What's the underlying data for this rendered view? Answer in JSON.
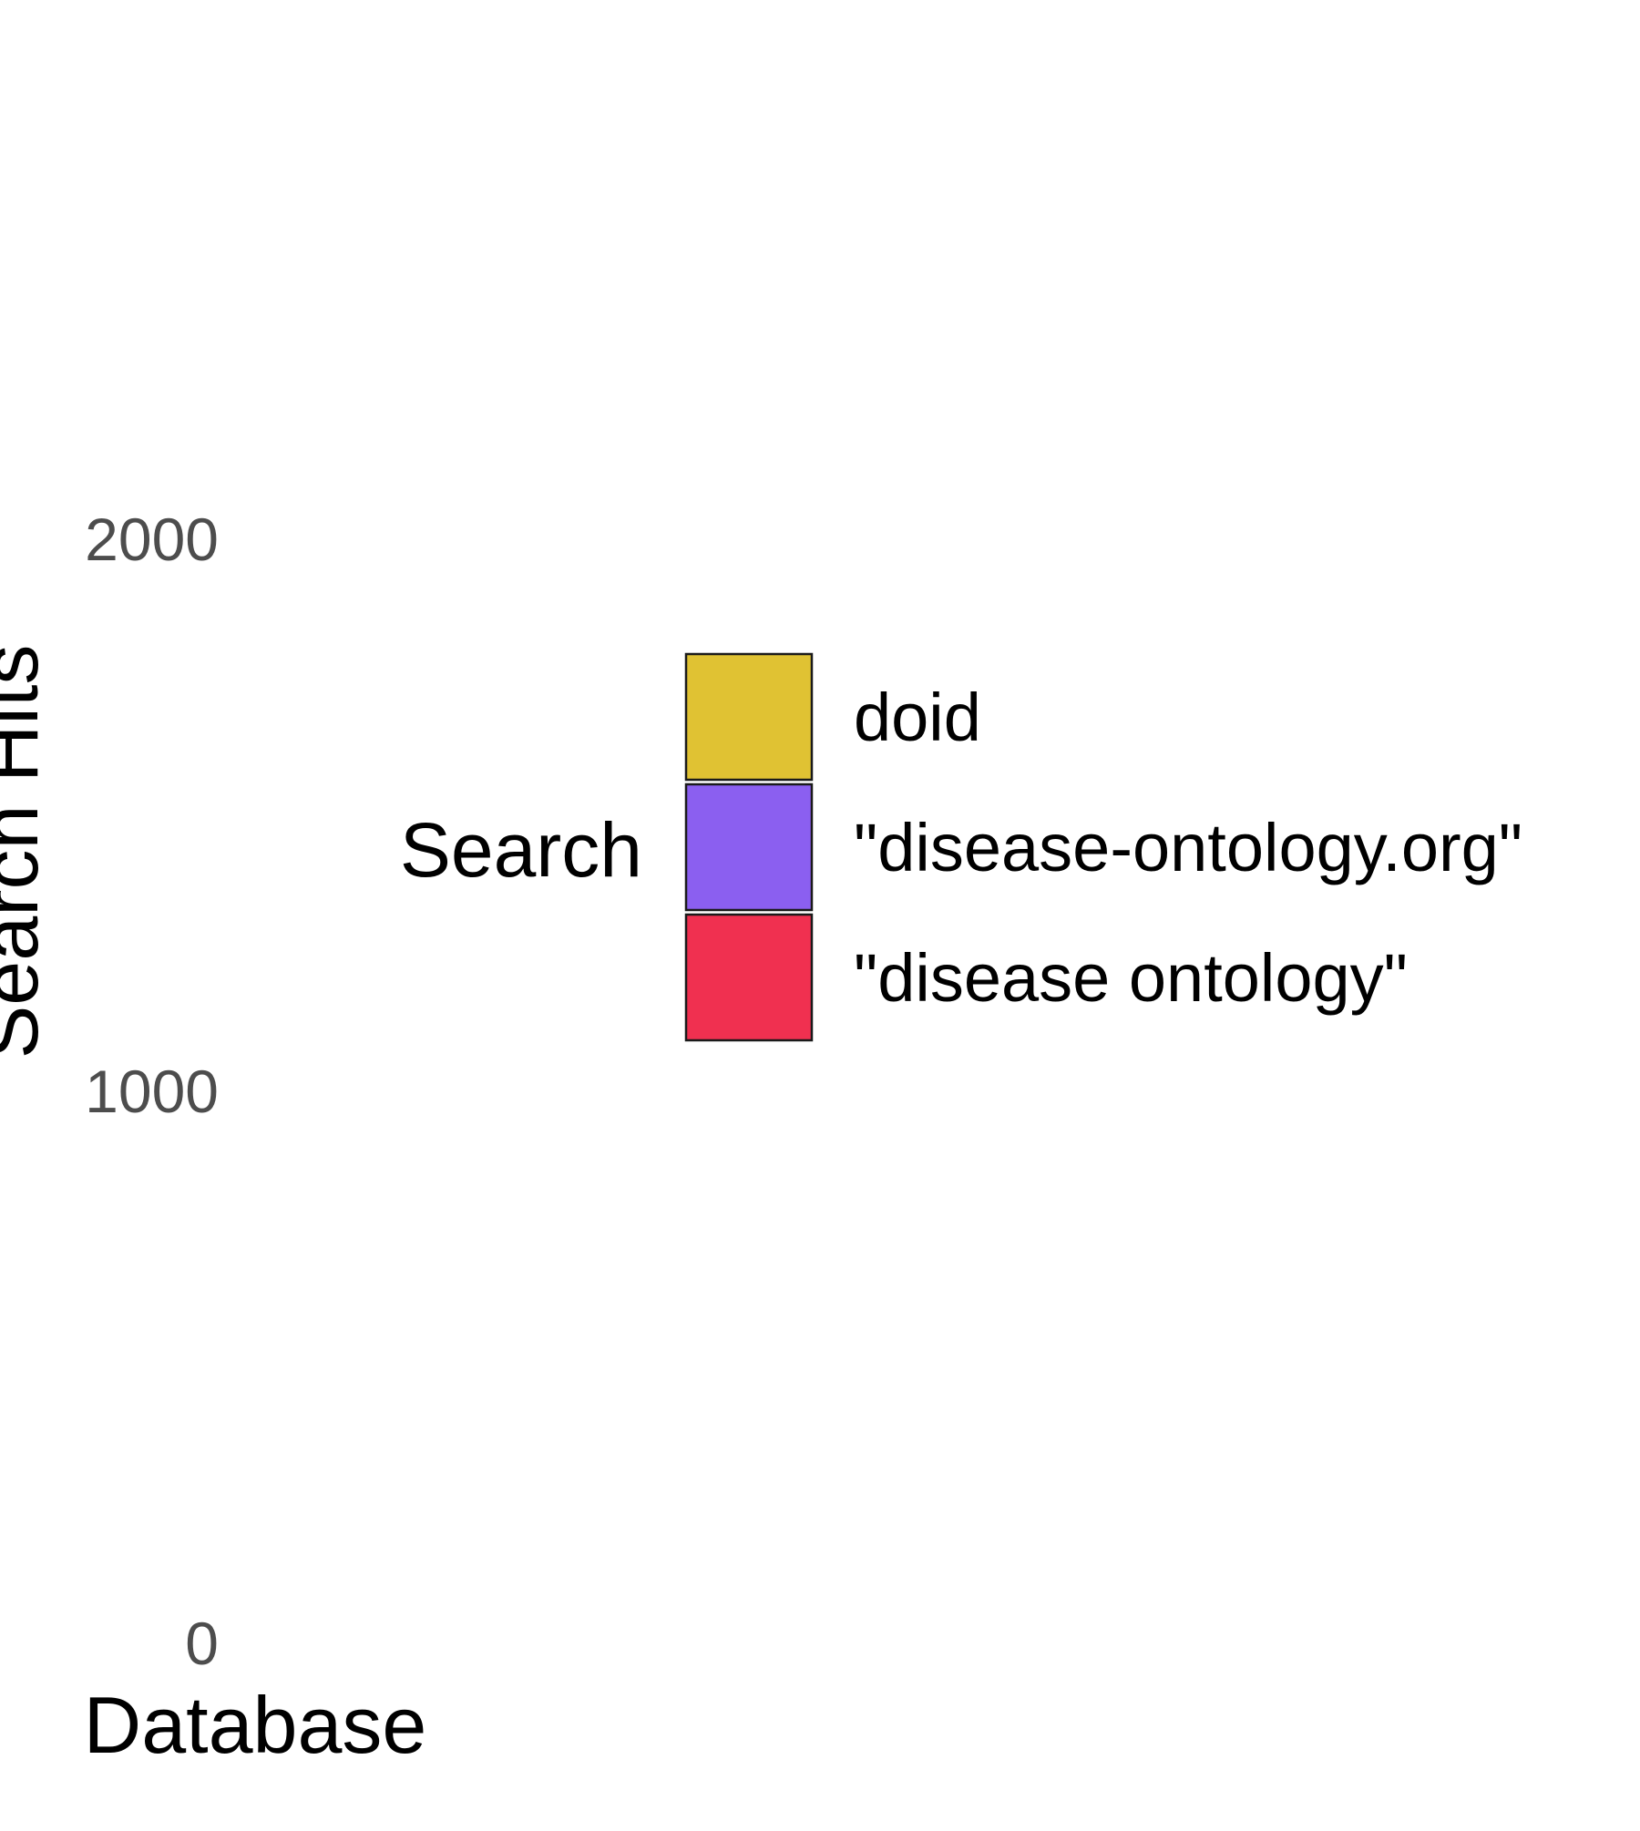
{
  "chart_data": {
    "type": "bar",
    "xlabel": "Database",
    "ylabel": "Search Hits",
    "ylim": [
      0,
      2000
    ],
    "yticks": [
      0,
      1000,
      2000
    ],
    "grid": false,
    "categories": [],
    "series": [
      {
        "name": "doid",
        "color": "#E0C233",
        "values": []
      },
      {
        "name": "\"disease-ontology.org\"",
        "color": "#8B5FF0",
        "values": []
      },
      {
        "name": "\"disease ontology\"",
        "color": "#F03050",
        "values": []
      }
    ],
    "legend": {
      "title": "Search",
      "placement": "center"
    }
  }
}
